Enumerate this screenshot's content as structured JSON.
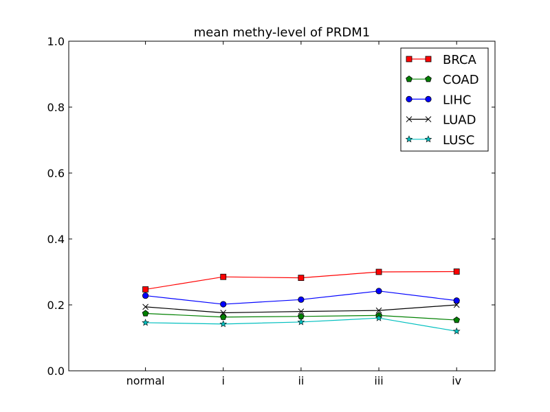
{
  "chart_data": {
    "type": "line",
    "title": "mean methy-level of PRDM1",
    "xlabel": "",
    "ylabel": "",
    "categories": [
      "normal",
      "i",
      "ii",
      "iii",
      "iv"
    ],
    "ylim": [
      0.0,
      1.0
    ],
    "yticks": [
      "0.0",
      "0.2",
      "0.4",
      "0.6",
      "0.8",
      "1.0"
    ],
    "grid": false,
    "legend_position": "top-right",
    "series": [
      {
        "name": "BRCA",
        "color": "#ff0000",
        "marker": "square",
        "values": [
          0.247,
          0.285,
          0.282,
          0.3,
          0.301
        ]
      },
      {
        "name": "COAD",
        "color": "#008000",
        "marker": "pentagon",
        "values": [
          0.174,
          0.163,
          0.165,
          0.168,
          0.154
        ]
      },
      {
        "name": "LIHC",
        "color": "#0000ff",
        "marker": "circle",
        "values": [
          0.228,
          0.202,
          0.216,
          0.242,
          0.213
        ]
      },
      {
        "name": "LUAD",
        "color": "#000000",
        "marker": "x",
        "values": [
          0.194,
          0.176,
          0.18,
          0.183,
          0.2
        ]
      },
      {
        "name": "LUSC",
        "color": "#00bfbf",
        "marker": "star",
        "values": [
          0.146,
          0.142,
          0.148,
          0.16,
          0.12
        ]
      }
    ]
  }
}
